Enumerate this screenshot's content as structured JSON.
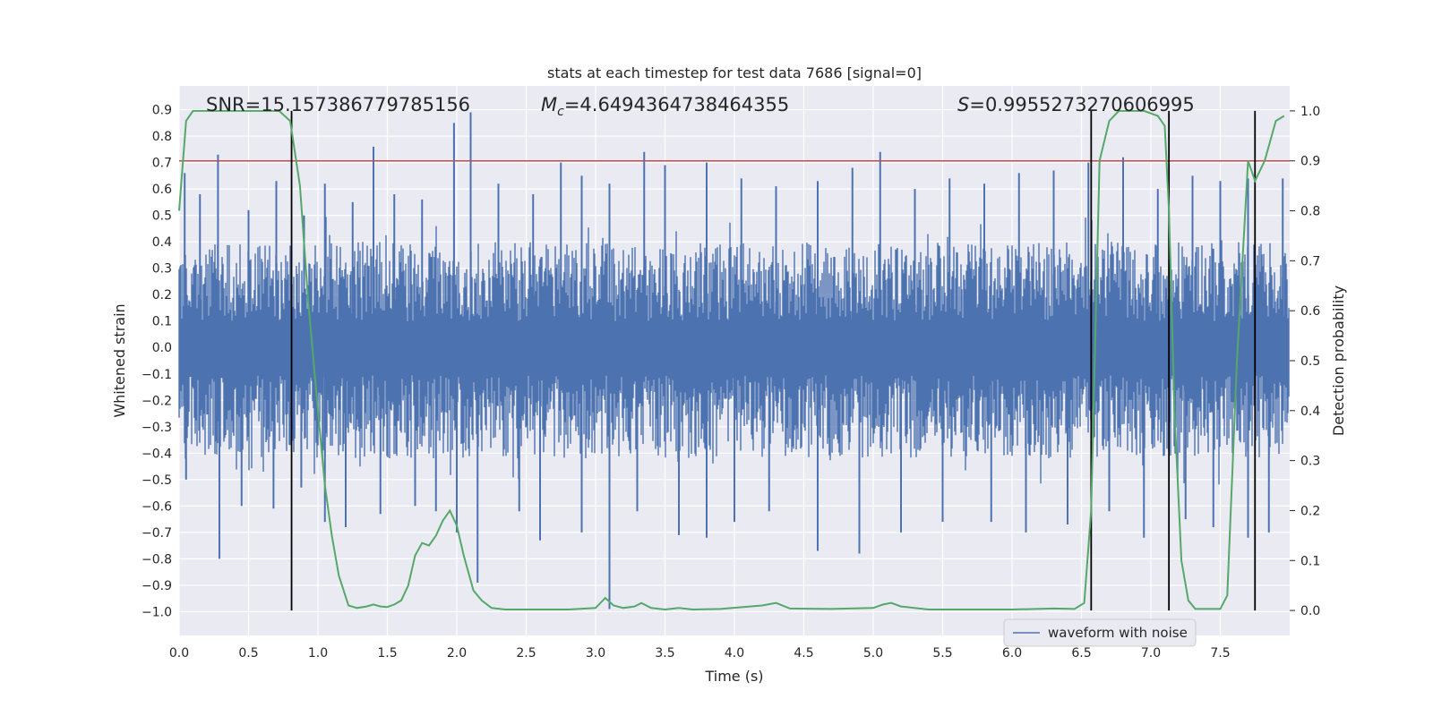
{
  "chart_data": {
    "type": "line",
    "title": "stats at each timestep for test data 7686 [signal=0]",
    "xlabel": "Time (s)",
    "ylabel": "Whitened strain",
    "y2label": "Detection probability",
    "xlim": [
      0,
      8
    ],
    "ylim": [
      -1.09,
      0.99
    ],
    "y2lim": [
      -0.05,
      1.05
    ],
    "xticks": [
      "0.0",
      "0.5",
      "1.0",
      "1.5",
      "2.0",
      "2.5",
      "3.0",
      "3.5",
      "4.0",
      "4.5",
      "5.0",
      "5.5",
      "6.0",
      "6.5",
      "7.0",
      "7.5"
    ],
    "yticks": [
      "0.9",
      "0.8",
      "0.7",
      "0.6",
      "0.5",
      "0.4",
      "0.3",
      "0.2",
      "0.1",
      "0.0",
      "−0.1",
      "−0.2",
      "−0.3",
      "−0.4",
      "−0.5",
      "−0.6",
      "−0.7",
      "−0.8",
      "−0.9",
      "−1.0"
    ],
    "y2ticks": [
      "1.0",
      "0.9",
      "0.8",
      "0.7",
      "0.6",
      "0.5",
      "0.4",
      "0.3",
      "0.2",
      "0.1",
      "0.0"
    ],
    "annotations": {
      "snr": "SNR=15.157386779785156",
      "mc_symbol": "M",
      "mc_sub": "c",
      "mc_value": "=4.6494364738464355",
      "s_symbol": "S",
      "s_value": "=0.9955273270606995"
    },
    "threshold_probability": 0.9,
    "vertical_lines_s": [
      0.81,
      6.57,
      7.13,
      7.75
    ],
    "legend": [
      "waveform with noise"
    ],
    "legend_position": "lower-right",
    "series": [
      {
        "name": "waveform with noise",
        "color": "#4c72b0",
        "typical_band": [
          -0.42,
          0.4
        ],
        "peaks": [
          [
            0.04,
            0.66
          ],
          [
            0.15,
            0.58
          ],
          [
            0.28,
            0.73
          ],
          [
            0.5,
            0.52
          ],
          [
            0.7,
            0.63
          ],
          [
            0.9,
            0.5
          ],
          [
            1.05,
            0.62
          ],
          [
            1.25,
            0.55
          ],
          [
            1.4,
            0.76
          ],
          [
            1.55,
            0.58
          ],
          [
            1.75,
            0.56
          ],
          [
            1.98,
            0.85
          ],
          [
            2.1,
            0.89
          ],
          [
            2.3,
            0.62
          ],
          [
            2.55,
            0.58
          ],
          [
            2.75,
            0.7
          ],
          [
            2.9,
            0.65
          ],
          [
            3.1,
            0.62
          ],
          [
            3.35,
            0.74
          ],
          [
            3.5,
            0.69
          ],
          [
            3.8,
            0.7
          ],
          [
            4.05,
            0.64
          ],
          [
            4.3,
            0.61
          ],
          [
            4.6,
            0.63
          ],
          [
            4.85,
            0.68
          ],
          [
            5.05,
            0.74
          ],
          [
            5.3,
            0.6
          ],
          [
            5.55,
            0.64
          ],
          [
            5.8,
            0.62
          ],
          [
            6.05,
            0.66
          ],
          [
            6.3,
            0.67
          ],
          [
            6.55,
            0.7
          ],
          [
            6.8,
            0.72
          ],
          [
            7.05,
            0.6
          ],
          [
            7.3,
            0.65
          ],
          [
            7.5,
            0.63
          ],
          [
            7.7,
            0.64
          ],
          [
            7.95,
            0.64
          ]
        ],
        "troughs": [
          [
            0.05,
            -0.5
          ],
          [
            0.29,
            -0.8
          ],
          [
            0.45,
            -0.6
          ],
          [
            0.68,
            -0.61
          ],
          [
            0.88,
            -0.53
          ],
          [
            1.05,
            -0.66
          ],
          [
            1.2,
            -0.68
          ],
          [
            1.45,
            -0.63
          ],
          [
            1.7,
            -0.6
          ],
          [
            1.85,
            -0.62
          ],
          [
            2.0,
            -0.7
          ],
          [
            2.15,
            -0.89
          ],
          [
            2.45,
            -0.62
          ],
          [
            2.6,
            -0.73
          ],
          [
            2.9,
            -0.7
          ],
          [
            3.1,
            -0.99
          ],
          [
            3.3,
            -0.62
          ],
          [
            3.6,
            -0.71
          ],
          [
            3.8,
            -0.72
          ],
          [
            4.0,
            -0.66
          ],
          [
            4.25,
            -0.62
          ],
          [
            4.6,
            -0.77
          ],
          [
            4.9,
            -0.78
          ],
          [
            5.2,
            -0.7
          ],
          [
            5.5,
            -0.66
          ],
          [
            5.85,
            -0.66
          ],
          [
            6.1,
            -0.7
          ],
          [
            6.4,
            -0.67
          ],
          [
            6.7,
            -0.62
          ],
          [
            6.95,
            -0.72
          ],
          [
            7.25,
            -0.65
          ],
          [
            7.45,
            -0.68
          ],
          [
            7.7,
            -0.72
          ],
          [
            7.85,
            -0.7
          ]
        ]
      },
      {
        "name": "detection probability",
        "color": "#55a868",
        "axis": "right",
        "x": [
          0.0,
          0.05,
          0.1,
          0.2,
          0.4,
          0.6,
          0.72,
          0.8,
          0.87,
          0.93,
          1.0,
          1.05,
          1.1,
          1.15,
          1.22,
          1.28,
          1.35,
          1.4,
          1.45,
          1.5,
          1.55,
          1.6,
          1.65,
          1.7,
          1.75,
          1.8,
          1.85,
          1.9,
          1.95,
          2.0,
          2.05,
          2.12,
          2.18,
          2.25,
          2.35,
          2.5,
          2.8,
          3.0,
          3.07,
          3.13,
          3.2,
          3.28,
          3.33,
          3.4,
          3.5,
          3.6,
          3.7,
          3.9,
          4.2,
          4.3,
          4.4,
          4.7,
          5.0,
          5.07,
          5.13,
          5.2,
          5.4,
          5.7,
          6.0,
          6.3,
          6.45,
          6.52,
          6.57,
          6.63,
          6.7,
          6.77,
          6.85,
          6.95,
          7.05,
          7.1,
          7.13,
          7.17,
          7.22,
          7.27,
          7.32,
          7.4,
          7.5,
          7.55,
          7.62,
          7.7,
          7.75,
          7.82,
          7.9,
          7.96
        ],
        "y": [
          0.8,
          0.98,
          1.0,
          1.0,
          1.0,
          1.0,
          1.0,
          0.98,
          0.85,
          0.62,
          0.4,
          0.25,
          0.15,
          0.07,
          0.01,
          0.005,
          0.008,
          0.012,
          0.008,
          0.007,
          0.012,
          0.02,
          0.05,
          0.11,
          0.135,
          0.13,
          0.15,
          0.18,
          0.2,
          0.17,
          0.11,
          0.04,
          0.02,
          0.005,
          0.002,
          0.002,
          0.002,
          0.005,
          0.025,
          0.01,
          0.005,
          0.008,
          0.015,
          0.005,
          0.002,
          0.005,
          0.002,
          0.003,
          0.01,
          0.015,
          0.004,
          0.003,
          0.005,
          0.012,
          0.015,
          0.008,
          0.002,
          0.002,
          0.002,
          0.004,
          0.003,
          0.015,
          0.2,
          0.9,
          0.98,
          1.0,
          1.0,
          1.0,
          0.99,
          0.97,
          0.8,
          0.4,
          0.1,
          0.02,
          0.003,
          0.003,
          0.003,
          0.03,
          0.5,
          0.9,
          0.86,
          0.9,
          0.98,
          0.99
        ]
      }
    ]
  }
}
